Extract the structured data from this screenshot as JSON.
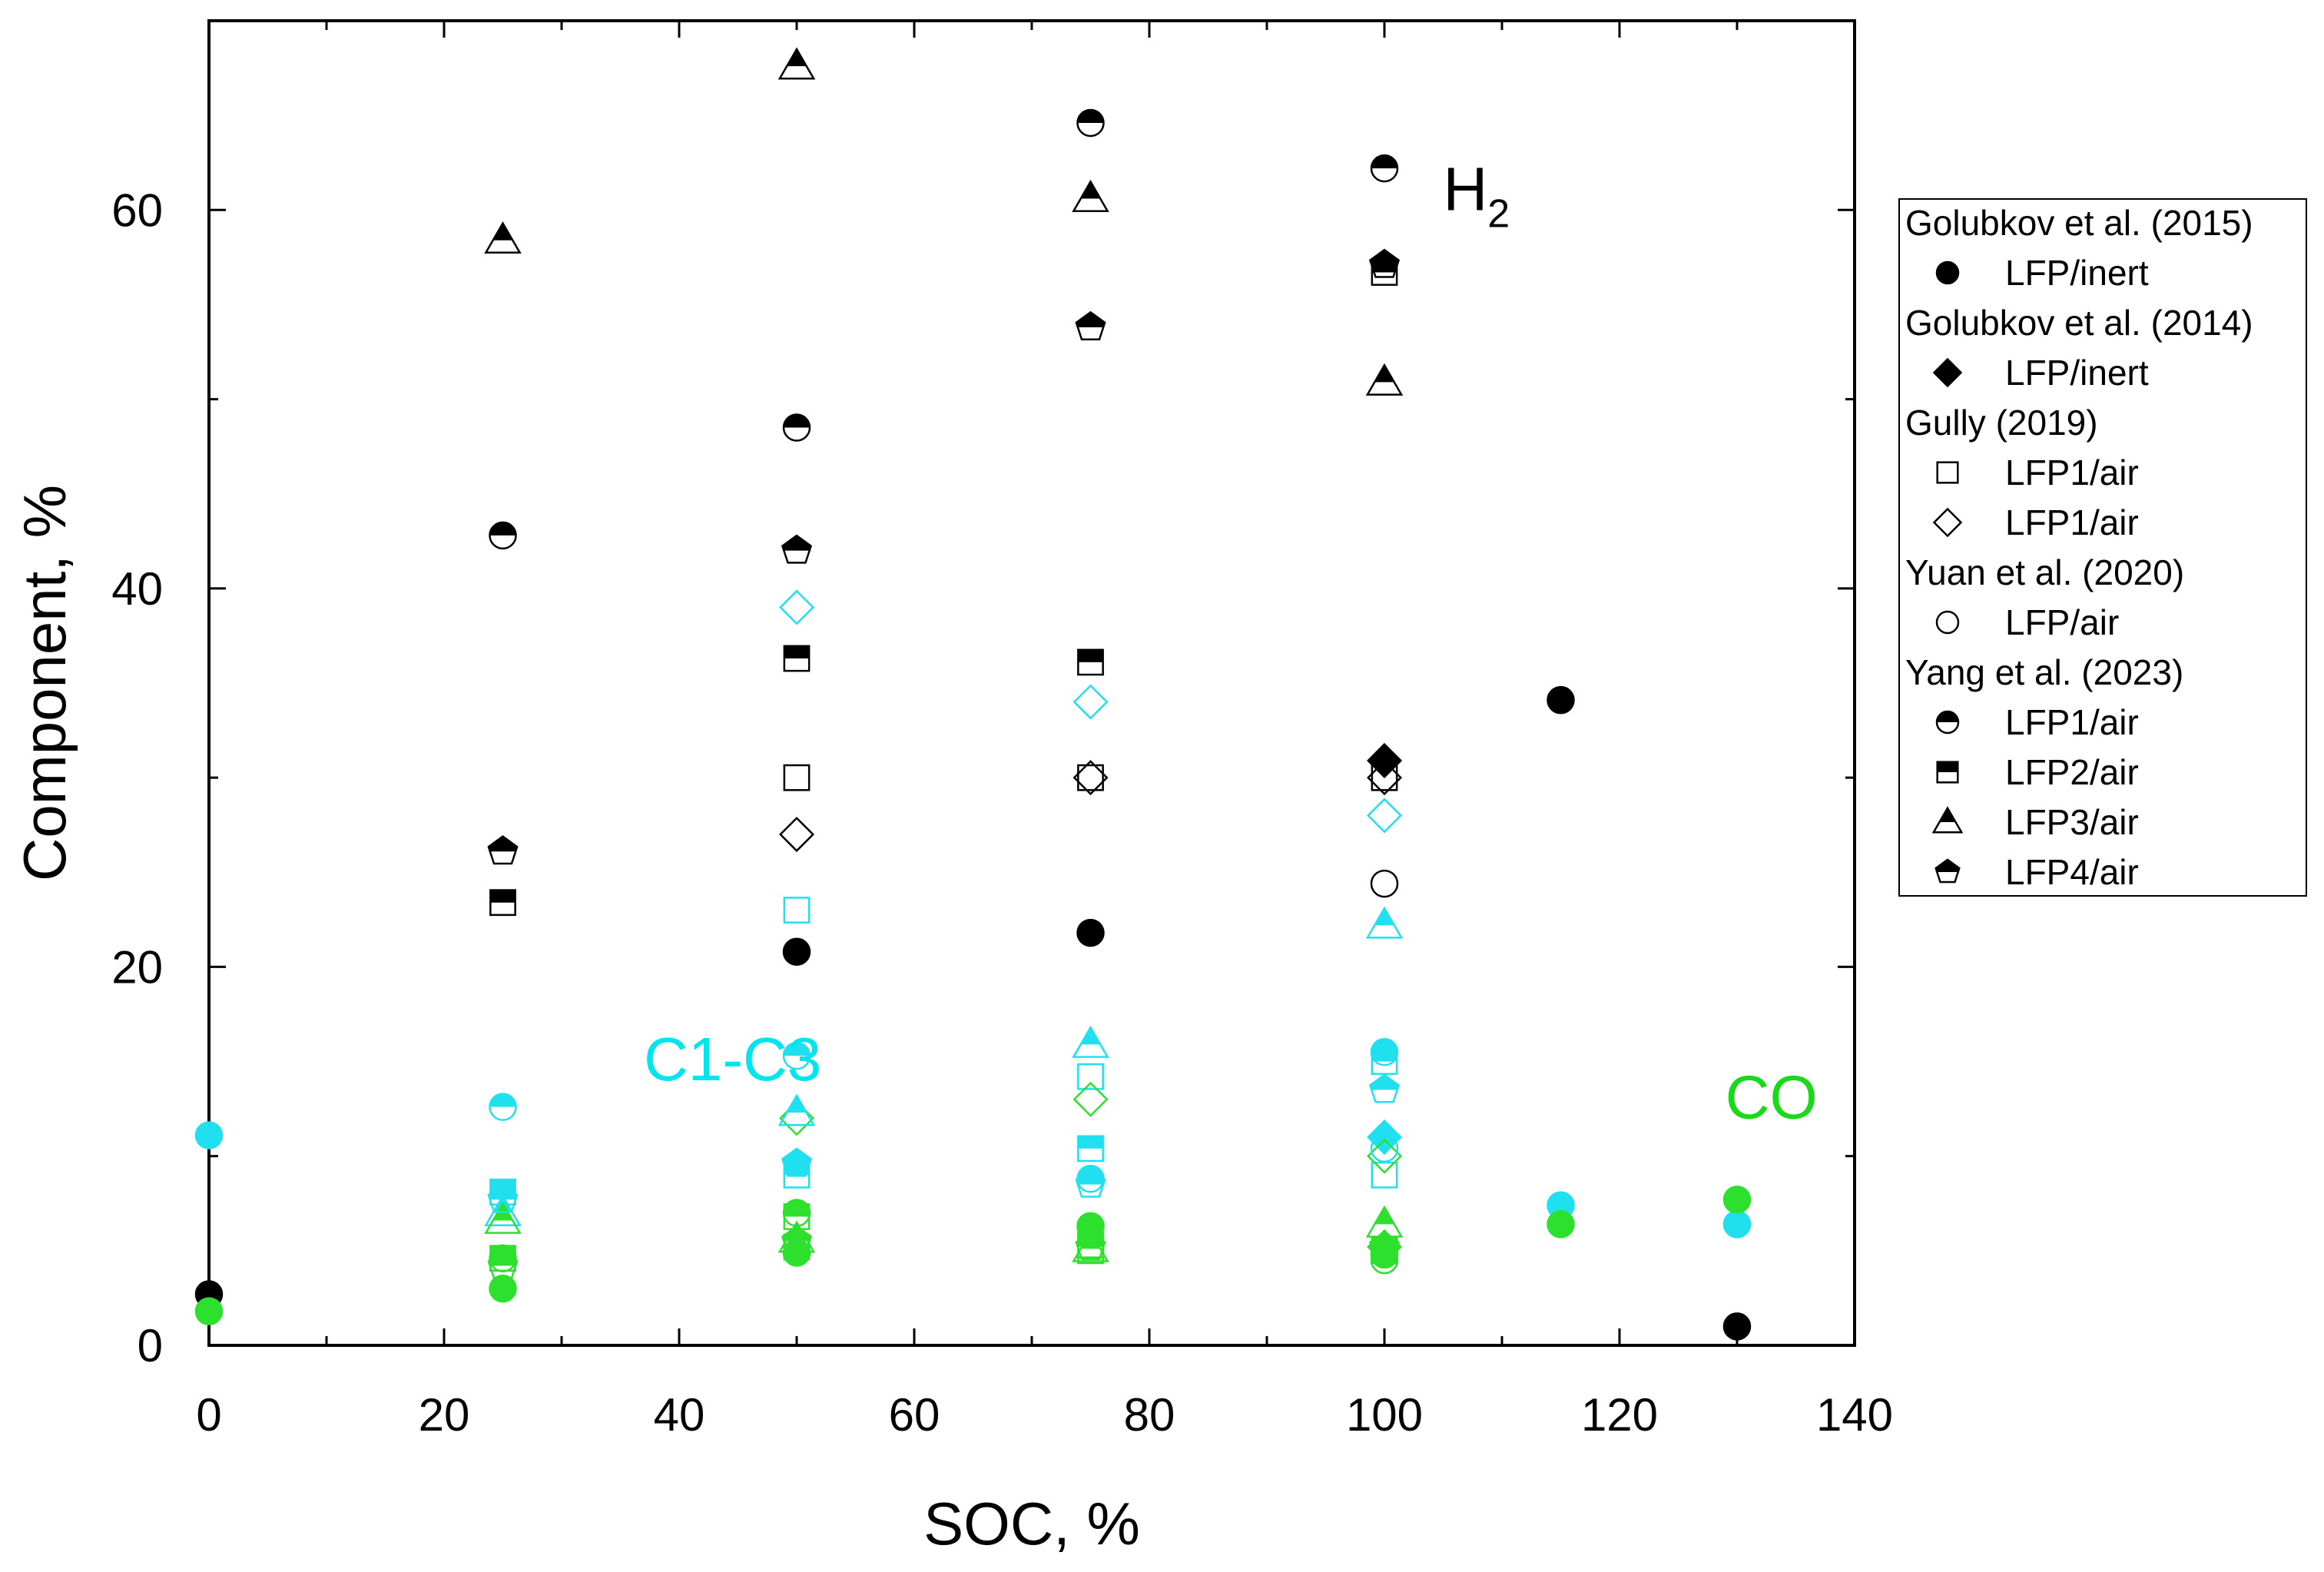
{
  "chart_data": {
    "type": "scatter",
    "title": "",
    "xlabel": "SOC, %",
    "ylabel": "Component, %",
    "xlim": [
      0,
      140
    ],
    "ylim": [
      0,
      70
    ],
    "xticks": [
      0,
      20,
      40,
      60,
      80,
      100,
      120,
      140
    ],
    "yticks": [
      0,
      20,
      40,
      60
    ],
    "annotations": [
      {
        "text": "H",
        "sub": "2",
        "color": "#000000",
        "x": 105,
        "y": 60
      },
      {
        "text": "C1-C3",
        "color": "#00e5ee",
        "x": 37,
        "y": 14
      },
      {
        "text": "CO",
        "color": "#19d919",
        "x": 129,
        "y": 12
      }
    ],
    "colors": {
      "H2": "#000000",
      "C1-C3": "#20e0f0",
      "CO": "#2ee02e",
      "grey": "#555555"
    },
    "legend": {
      "position": "right",
      "groups": [
        {
          "source": "Golubkov et al. (2015)",
          "entries": [
            {
              "label": "LFP/inert",
              "marker": "circle",
              "fill": "full"
            }
          ]
        },
        {
          "source": "Golubkov et al. (2014)",
          "entries": [
            {
              "label": "LFP/inert",
              "marker": "diamond",
              "fill": "full"
            }
          ]
        },
        {
          "source": "Gully (2019)",
          "entries": [
            {
              "label": "LFP1/air",
              "marker": "square",
              "fill": "none"
            },
            {
              "label": "LFP1/air",
              "marker": "diamond",
              "fill": "none"
            }
          ]
        },
        {
          "source": "Yuan et al. (2020)",
          "entries": [
            {
              "label": "LFP/air",
              "marker": "circle",
              "fill": "none"
            }
          ]
        },
        {
          "source": "Yang et al. (2023)",
          "entries": [
            {
              "label": "LFP1/air",
              "marker": "circle",
              "fill": "top"
            },
            {
              "label": "LFP2/air",
              "marker": "square",
              "fill": "top"
            },
            {
              "label": "LFP3/air",
              "marker": "triangle",
              "fill": "top"
            },
            {
              "label": "LFP4/air",
              "marker": "pentagon",
              "fill": "top"
            }
          ]
        }
      ]
    },
    "series": [
      {
        "name": "Golubkov et al. (2015) LFP/inert",
        "marker": "circle",
        "fill": "full",
        "points": [
          {
            "x": 0,
            "y": 2.7,
            "gas": "H2"
          },
          {
            "x": 50,
            "y": 20.8,
            "gas": "H2"
          },
          {
            "x": 75,
            "y": 21.8,
            "gas": "H2"
          },
          {
            "x": 115,
            "y": 34.1,
            "gas": "H2"
          },
          {
            "x": 130,
            "y": 1.0,
            "gas": "H2"
          },
          {
            "x": 0,
            "y": 11.1,
            "gas": "C1-C3"
          },
          {
            "x": 115,
            "y": 7.4,
            "gas": "C1-C3"
          },
          {
            "x": 130,
            "y": 6.4,
            "gas": "C1-C3"
          },
          {
            "x": 0,
            "y": 1.8,
            "gas": "CO"
          },
          {
            "x": 25,
            "y": 3.0,
            "gas": "CO"
          },
          {
            "x": 50,
            "y": 4.9,
            "gas": "CO"
          },
          {
            "x": 75,
            "y": 6.3,
            "gas": "CO"
          },
          {
            "x": 100,
            "y": 4.8,
            "gas": "CO"
          },
          {
            "x": 115,
            "y": 6.4,
            "gas": "CO"
          },
          {
            "x": 130,
            "y": 7.7,
            "gas": "CO"
          }
        ]
      },
      {
        "name": "Golubkov et al. (2014) LFP/inert",
        "marker": "diamond",
        "fill": "full",
        "points": [
          {
            "x": 100,
            "y": 30.9,
            "gas": "H2"
          },
          {
            "x": 100,
            "y": 11.0,
            "gas": "C1-C3"
          },
          {
            "x": 100,
            "y": 5.2,
            "gas": "CO"
          }
        ]
      },
      {
        "name": "Gully (2019) LFP1/air",
        "marker": "square",
        "fill": "none",
        "points": [
          {
            "x": 50,
            "y": 30.0,
            "gas": "H2"
          },
          {
            "x": 75,
            "y": 30.0,
            "gas": "H2"
          },
          {
            "x": 100,
            "y": 30.0,
            "gas": "H2"
          },
          {
            "x": 50,
            "y": 23.0,
            "gas": "C1-C3"
          },
          {
            "x": 75,
            "y": 14.2,
            "gas": "C1-C3"
          },
          {
            "x": 100,
            "y": 9.0,
            "gas": "C1-C3"
          },
          {
            "x": 50,
            "y": 5.2,
            "gas": "CO"
          },
          {
            "x": 75,
            "y": 5.0,
            "gas": "CO"
          },
          {
            "x": 100,
            "y": 5.0,
            "gas": "CO"
          }
        ]
      },
      {
        "name": "Gully (2019) LFP1/air",
        "marker": "diamond",
        "fill": "none",
        "points": [
          {
            "x": 50,
            "y": 27.0,
            "gas": "H2"
          },
          {
            "x": 75,
            "y": 30.0,
            "gas": "H2"
          },
          {
            "x": 100,
            "y": 30.0,
            "gas": "H2"
          },
          {
            "x": 50,
            "y": 39.0,
            "gas": "C1-C3"
          },
          {
            "x": 75,
            "y": 34.0,
            "gas": "C1-C3"
          },
          {
            "x": 100,
            "y": 28.0,
            "gas": "C1-C3"
          },
          {
            "x": 50,
            "y": 12.0,
            "gas": "CO"
          },
          {
            "x": 75,
            "y": 13.0,
            "gas": "CO"
          },
          {
            "x": 100,
            "y": 10.0,
            "gas": "CO"
          }
        ]
      },
      {
        "name": "Yuan et al. (2020) LFP/air",
        "marker": "circle",
        "fill": "none",
        "points": [
          {
            "x": 100,
            "y": 24.4,
            "gas": "H2"
          },
          {
            "x": 100,
            "y": 10.4,
            "gas": "C1-C3"
          },
          {
            "x": 100,
            "y": 4.5,
            "gas": "CO"
          }
        ]
      },
      {
        "name": "Yang et al. (2023) LFP1/air",
        "marker": "circle",
        "fill": "top",
        "points": [
          {
            "x": 25,
            "y": 42.8,
            "gas": "H2"
          },
          {
            "x": 50,
            "y": 48.5,
            "gas": "H2"
          },
          {
            "x": 75,
            "y": 64.6,
            "gas": "H2"
          },
          {
            "x": 100,
            "y": 62.2,
            "gas": "H2"
          },
          {
            "x": 25,
            "y": 12.6,
            "gas": "C1-C3"
          },
          {
            "x": 50,
            "y": 15.3,
            "gas": "C1-C3"
          },
          {
            "x": 75,
            "y": 8.8,
            "gas": "C1-C3"
          },
          {
            "x": 100,
            "y": 15.5,
            "gas": "C1-C3"
          },
          {
            "x": 25,
            "y": 4.6,
            "gas": "CO"
          },
          {
            "x": 50,
            "y": 7.0,
            "gas": "CO"
          },
          {
            "x": 75,
            "y": 6.3,
            "gas": "CO"
          },
          {
            "x": 100,
            "y": 4.8,
            "gas": "CO"
          }
        ]
      },
      {
        "name": "Yang et al. (2023) LFP2/air",
        "marker": "square",
        "fill": "top",
        "points": [
          {
            "x": 25,
            "y": 23.4,
            "gas": "H2"
          },
          {
            "x": 50,
            "y": 36.3,
            "gas": "H2"
          },
          {
            "x": 75,
            "y": 36.1,
            "gas": "H2"
          },
          {
            "x": 100,
            "y": 56.7,
            "gas": "H2"
          },
          {
            "x": 25,
            "y": 8.1,
            "gas": "C1-C3"
          },
          {
            "x": 50,
            "y": 9.0,
            "gas": "C1-C3"
          },
          {
            "x": 75,
            "y": 10.4,
            "gas": "C1-C3"
          },
          {
            "x": 100,
            "y": 15.0,
            "gas": "C1-C3"
          },
          {
            "x": 25,
            "y": 4.6,
            "gas": "CO"
          },
          {
            "x": 50,
            "y": 6.8,
            "gas": "CO"
          },
          {
            "x": 75,
            "y": 5.3,
            "gas": "CO"
          },
          {
            "x": 100,
            "y": 5.0,
            "gas": "CO"
          }
        ]
      },
      {
        "name": "Yang et al. (2023) LFP3/air",
        "marker": "triangle",
        "fill": "top",
        "points": [
          {
            "x": 25,
            "y": 58.4,
            "gas": "H2"
          },
          {
            "x": 50,
            "y": 67.6,
            "gas": "H2"
          },
          {
            "x": 75,
            "y": 60.6,
            "gas": "H2"
          },
          {
            "x": 100,
            "y": 50.9,
            "gas": "H2"
          },
          {
            "x": 25,
            "y": 7.0,
            "gas": "C1-C3"
          },
          {
            "x": 50,
            "y": 12.3,
            "gas": "C1-C3"
          },
          {
            "x": 75,
            "y": 15.9,
            "gas": "C1-C3"
          },
          {
            "x": 100,
            "y": 22.2,
            "gas": "C1-C3"
          },
          {
            "x": 25,
            "y": 6.6,
            "gas": "CO"
          },
          {
            "x": 50,
            "y": 5.6,
            "gas": "CO"
          },
          {
            "x": 75,
            "y": 5.1,
            "gas": "CO"
          },
          {
            "x": 100,
            "y": 6.4,
            "gas": "CO"
          }
        ]
      },
      {
        "name": "Yang et al. (2023) LFP4/air",
        "marker": "pentagon",
        "fill": "top",
        "points": [
          {
            "x": 25,
            "y": 26.1,
            "gas": "H2"
          },
          {
            "x": 50,
            "y": 42.0,
            "gas": "H2"
          },
          {
            "x": 75,
            "y": 53.8,
            "gas": "H2"
          },
          {
            "x": 100,
            "y": 57.1,
            "gas": "H2"
          },
          {
            "x": 25,
            "y": 7.7,
            "gas": "C1-C3"
          },
          {
            "x": 50,
            "y": 9.6,
            "gas": "C1-C3"
          },
          {
            "x": 75,
            "y": 8.5,
            "gas": "C1-C3"
          },
          {
            "x": 100,
            "y": 13.5,
            "gas": "C1-C3"
          },
          {
            "x": 25,
            "y": 4.2,
            "gas": "CO"
          },
          {
            "x": 50,
            "y": 5.5,
            "gas": "CO"
          },
          {
            "x": 75,
            "y": 5.2,
            "gas": "CO"
          },
          {
            "x": 100,
            "y": 5.2,
            "gas": "CO"
          }
        ]
      }
    ]
  }
}
